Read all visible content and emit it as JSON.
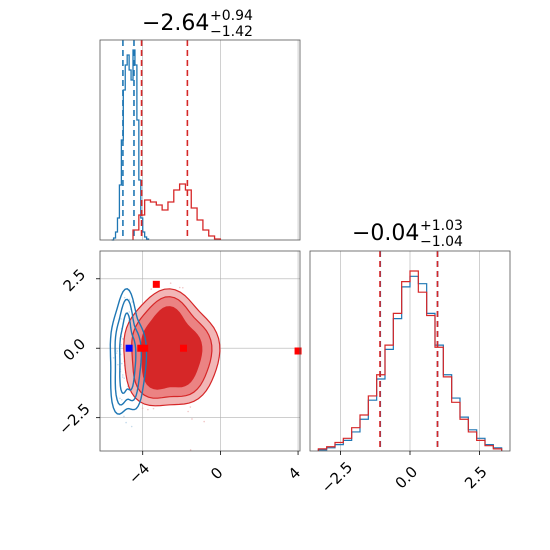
{
  "chart_data": {
    "type": "corner",
    "colors": {
      "blue": "#1f77b4",
      "red": "#d62728",
      "grid": "#b0b0b0"
    },
    "panels": [
      {
        "id": "hist-param1",
        "type": "step-histogram",
        "title": {
          "main": "−2.64",
          "upper": "+0.94",
          "lower": "−1.42"
        },
        "xlim": [
          -6.2,
          4.1
        ],
        "series": [
          {
            "name": "blue",
            "bin_edges": [
              -5.6,
              -5.5,
              -5.4,
              -5.3,
              -5.2,
              -5.1,
              -5.0,
              -4.9,
              -4.8,
              -4.7,
              -4.6,
              -4.5,
              -4.4,
              -4.3,
              -4.2,
              -4.1,
              -4.0,
              -3.9,
              -3.8,
              -3.7
            ],
            "counts": [
              0,
              2,
              8,
              22,
              55,
              100,
              150,
              175,
              185,
              170,
              160,
              190,
              175,
              120,
              60,
              22,
              8,
              3,
              1
            ],
            "quantile_lines": [
              -5.02,
              -4.45
            ]
          },
          {
            "name": "red",
            "bin_edges": [
              -4.5,
              -4.2,
              -3.9,
              -3.6,
              -3.3,
              -3.0,
              -2.7,
              -2.4,
              -2.1,
              -1.8,
              -1.5,
              -1.2,
              -0.9,
              -0.6,
              -0.3,
              0.0
            ],
            "counts": [
              10,
              25,
              40,
              38,
              35,
              30,
              38,
              50,
              56,
              50,
              32,
              20,
              10,
              4,
              1
            ],
            "quantile_lines": [
              -4.06,
              -1.7
            ]
          }
        ]
      },
      {
        "id": "hist2d-param1-param2",
        "type": "contour",
        "xlim": [
          -6.2,
          4.1
        ],
        "ylim": [
          -3.7,
          3.5
        ],
        "xticks": [
          -4,
          0,
          4
        ],
        "xtick_labels": [
          "−4",
          "0",
          "4"
        ],
        "yticks": [
          -2.5,
          0.0,
          2.5
        ],
        "ytick_labels": [
          "−2.5",
          "0.0",
          "2.5"
        ],
        "blue_contour_center": [
          -4.8,
          -0.3
        ],
        "red_contour_center": [
          -2.6,
          -0.1
        ],
        "red_fill_levels": [
          "#f2b6b6",
          "#eb8383",
          "#d62728"
        ],
        "markers": [
          {
            "color": "blue",
            "x": -4.7,
            "y": 0.0
          },
          {
            "color": "red",
            "x": -4.1,
            "y": 0.0
          },
          {
            "color": "red",
            "x": -3.9,
            "y": 0.0
          },
          {
            "color": "red",
            "x": -1.9,
            "y": 0.0
          },
          {
            "color": "red",
            "x": 4.0,
            "y": -0.1
          },
          {
            "color": "red",
            "x": -3.3,
            "y": 2.3
          }
        ]
      },
      {
        "id": "hist-param2",
        "type": "step-histogram",
        "title": {
          "main": "−0.04",
          "upper": "+1.03",
          "lower": "−1.04"
        },
        "xlim": [
          -3.6,
          3.6
        ],
        "xticks": [
          -2.5,
          0.0,
          2.5
        ],
        "xtick_labels": [
          "−2.5",
          "0.0",
          "2.5"
        ],
        "series": [
          {
            "name": "blue",
            "bin_edges": [
              -3.3,
              -3.0,
              -2.7,
              -2.4,
              -2.1,
              -1.8,
              -1.5,
              -1.2,
              -0.9,
              -0.6,
              -0.3,
              0.0,
              0.3,
              0.6,
              0.9,
              1.2,
              1.5,
              1.8,
              2.1,
              2.4,
              2.7,
              3.0,
              3.3
            ],
            "counts": [
              1,
              3,
              6,
              10,
              18,
              30,
              48,
              68,
              96,
              125,
              155,
              165,
              158,
              130,
              100,
              72,
              50,
              32,
              20,
              12,
              6,
              3
            ],
            "quantile_lines": [
              -1.07,
              0.99
            ]
          },
          {
            "name": "red",
            "bin_edges": [
              -3.3,
              -3.0,
              -2.7,
              -2.4,
              -2.1,
              -1.8,
              -1.5,
              -1.2,
              -0.9,
              -0.6,
              -0.3,
              0.0,
              0.3,
              0.6,
              0.9,
              1.2,
              1.5,
              1.8,
              2.1,
              2.4,
              2.7,
              3.0,
              3.3
            ],
            "counts": [
              2,
              4,
              8,
              12,
              22,
              34,
              52,
              72,
              100,
              130,
              160,
              170,
              150,
              128,
              98,
              70,
              46,
              30,
              18,
              10,
              5,
              2
            ],
            "quantile_lines": [
              -1.08,
              0.99
            ]
          }
        ]
      }
    ]
  }
}
